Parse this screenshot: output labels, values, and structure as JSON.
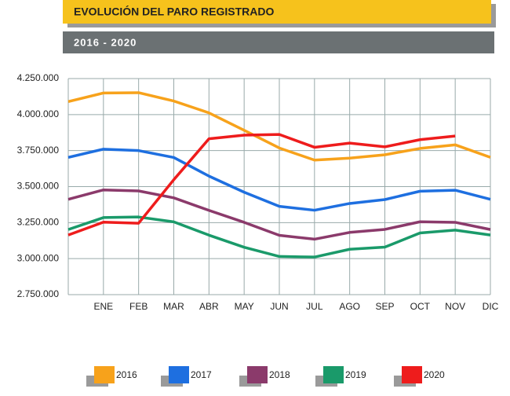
{
  "chart_data": {
    "type": "line",
    "title": "EVOLUCIÓN DEL PARO REGISTRADO",
    "subtitle": "2016 - 2020",
    "categories": [
      null,
      "ENE",
      "FEB",
      "MAR",
      "ABR",
      "MAY",
      "JUN",
      "JUL",
      "AGO",
      "SEP",
      "OCT",
      "NOV",
      "DIC"
    ],
    "series": [
      {
        "name": "2016",
        "color": "#f7a21b",
        "values": [
          4090000,
          4150000,
          4152000,
          4094000,
          4012000,
          3891000,
          3768000,
          3684000,
          3698000,
          3721000,
          3765000,
          3790000,
          3703000
        ]
      },
      {
        "name": "2017",
        "color": "#1e6fe0",
        "values": [
          3703000,
          3760000,
          3750000,
          3702000,
          3573000,
          3461000,
          3363000,
          3336000,
          3383000,
          3410000,
          3468000,
          3475000,
          3412000
        ]
      },
      {
        "name": "2018",
        "color": "#8b3a6b",
        "values": [
          3412000,
          3477000,
          3470000,
          3422000,
          3335000,
          3252000,
          3162000,
          3135000,
          3182000,
          3203000,
          3256000,
          3252000,
          3202000
        ]
      },
      {
        "name": "2019",
        "color": "#1a9a6a",
        "values": [
          3202000,
          3285000,
          3289000,
          3255000,
          3163000,
          3079000,
          3015000,
          3011000,
          3065000,
          3080000,
          3178000,
          3198000,
          3164000
        ]
      },
      {
        "name": "2020",
        "color": "#ee1c1c",
        "values": [
          3164000,
          3253000,
          3246000,
          3548000,
          3832000,
          3857000,
          3862000,
          3773000,
          3802000,
          3776000,
          3826000,
          3851000,
          null
        ]
      }
    ],
    "ylim": [
      2750000,
      4250000
    ],
    "yticks": [
      {
        "value": 2750000,
        "label": "2.750.000"
      },
      {
        "value": 3000000,
        "label": "3.000.000"
      },
      {
        "value": 3250000,
        "label": "3.250.000"
      },
      {
        "value": 3500000,
        "label": "3.500.000"
      },
      {
        "value": 3750000,
        "label": "3.750.000"
      },
      {
        "value": 4000000,
        "label": "4.000.000"
      },
      {
        "value": 4250000,
        "label": "4.250.000"
      }
    ],
    "grid": true
  }
}
